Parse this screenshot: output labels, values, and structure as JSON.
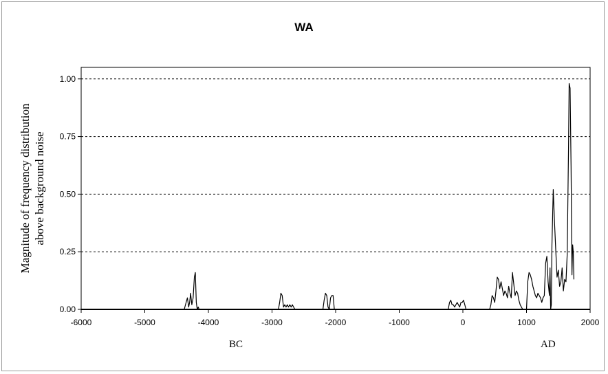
{
  "chart_data": {
    "type": "line",
    "title": "WA",
    "ylabel_line1": "Magnitude of frequency distribution",
    "ylabel_line2": "above background noise",
    "xlabel": "",
    "era_labels": {
      "left": "BC",
      "right": "AD"
    },
    "xlim": [
      -6000,
      2000
    ],
    "ylim": [
      0,
      1.05
    ],
    "xticks": [
      -6000,
      -5000,
      -4000,
      -3000,
      -2000,
      -1000,
      0,
      1000,
      2000
    ],
    "yticks": [
      0.0,
      0.25,
      0.5,
      0.75,
      1.0
    ],
    "ytick_labels": [
      "0.00",
      "0.25",
      "0.50",
      "0.75",
      "1.00"
    ],
    "grid": "horizontal dashed at y ticks",
    "series": [
      {
        "color": "#000000",
        "points": [
          [
            -6000,
            0
          ],
          [
            -4380,
            0
          ],
          [
            -4350,
            0.03
          ],
          [
            -4330,
            0.05
          ],
          [
            -4310,
            0.01
          ],
          [
            -4295,
            0.03
          ],
          [
            -4280,
            0.07
          ],
          [
            -4260,
            0.02
          ],
          [
            -4240,
            0.05
          ],
          [
            -4220,
            0.14
          ],
          [
            -4205,
            0.16
          ],
          [
            -4190,
            0.03
          ],
          [
            -4175,
            0
          ],
          [
            -4160,
            0.01
          ],
          [
            -4145,
            0
          ],
          [
            -2900,
            0
          ],
          [
            -2880,
            0.03
          ],
          [
            -2860,
            0.07
          ],
          [
            -2840,
            0.06
          ],
          [
            -2820,
            0.01
          ],
          [
            -2800,
            0.02
          ],
          [
            -2780,
            0.01
          ],
          [
            -2760,
            0.02
          ],
          [
            -2740,
            0.01
          ],
          [
            -2720,
            0.02
          ],
          [
            -2700,
            0.01
          ],
          [
            -2680,
            0.02
          ],
          [
            -2660,
            0.01
          ],
          [
            -2640,
            0
          ],
          [
            -2200,
            0
          ],
          [
            -2180,
            0.04
          ],
          [
            -2160,
            0.07
          ],
          [
            -2140,
            0.06
          ],
          [
            -2120,
            0.01
          ],
          [
            -2100,
            0
          ],
          [
            -2080,
            0.05
          ],
          [
            -2060,
            0.06
          ],
          [
            -2040,
            0.06
          ],
          [
            -2020,
            0
          ],
          [
            -230,
            0
          ],
          [
            -210,
            0.03
          ],
          [
            -190,
            0.04
          ],
          [
            -170,
            0.02
          ],
          [
            -150,
            0.02
          ],
          [
            -130,
            0.01
          ],
          [
            -110,
            0.02
          ],
          [
            -90,
            0.03
          ],
          [
            -70,
            0.02
          ],
          [
            -50,
            0.01
          ],
          [
            -30,
            0.03
          ],
          [
            -10,
            0.03
          ],
          [
            10,
            0.04
          ],
          [
            30,
            0.02
          ],
          [
            50,
            0
          ],
          [
            420,
            0
          ],
          [
            440,
            0.02
          ],
          [
            460,
            0.06
          ],
          [
            480,
            0.05
          ],
          [
            500,
            0.03
          ],
          [
            520,
            0.08
          ],
          [
            540,
            0.14
          ],
          [
            560,
            0.13
          ],
          [
            580,
            0.09
          ],
          [
            600,
            0.12
          ],
          [
            620,
            0.09
          ],
          [
            640,
            0.06
          ],
          [
            660,
            0.08
          ],
          [
            680,
            0.07
          ],
          [
            700,
            0.05
          ],
          [
            720,
            0.1
          ],
          [
            740,
            0.07
          ],
          [
            760,
            0.05
          ],
          [
            780,
            0.16
          ],
          [
            800,
            0.11
          ],
          [
            820,
            0.06
          ],
          [
            840,
            0.08
          ],
          [
            860,
            0.07
          ],
          [
            880,
            0.04
          ],
          [
            900,
            0.02
          ],
          [
            920,
            0.01
          ],
          [
            940,
            0
          ],
          [
            1000,
            0
          ],
          [
            1020,
            0.12
          ],
          [
            1040,
            0.16
          ],
          [
            1060,
            0.15
          ],
          [
            1080,
            0.13
          ],
          [
            1100,
            0.1
          ],
          [
            1120,
            0.08
          ],
          [
            1140,
            0.06
          ],
          [
            1160,
            0.05
          ],
          [
            1180,
            0.07
          ],
          [
            1200,
            0.06
          ],
          [
            1220,
            0.05
          ],
          [
            1240,
            0.03
          ],
          [
            1260,
            0.05
          ],
          [
            1280,
            0.06
          ],
          [
            1300,
            0.2
          ],
          [
            1320,
            0.23
          ],
          [
            1340,
            0.12
          ],
          [
            1360,
            0.06
          ],
          [
            1370,
            0.18
          ],
          [
            1380,
            0
          ],
          [
            1390,
            0.02
          ],
          [
            1400,
            0.28
          ],
          [
            1420,
            0.52
          ],
          [
            1440,
            0.38
          ],
          [
            1460,
            0.26
          ],
          [
            1480,
            0.14
          ],
          [
            1500,
            0.17
          ],
          [
            1520,
            0.1
          ],
          [
            1540,
            0.12
          ],
          [
            1560,
            0.18
          ],
          [
            1580,
            0.08
          ],
          [
            1600,
            0.13
          ],
          [
            1620,
            0.12
          ],
          [
            1640,
            0.24
          ],
          [
            1660,
            0.7
          ],
          [
            1670,
            0.98
          ],
          [
            1685,
            0.96
          ],
          [
            1700,
            0.62
          ],
          [
            1715,
            0.15
          ],
          [
            1725,
            0.28
          ],
          [
            1735,
            0.25
          ],
          [
            1745,
            0.13
          ]
        ]
      }
    ]
  }
}
